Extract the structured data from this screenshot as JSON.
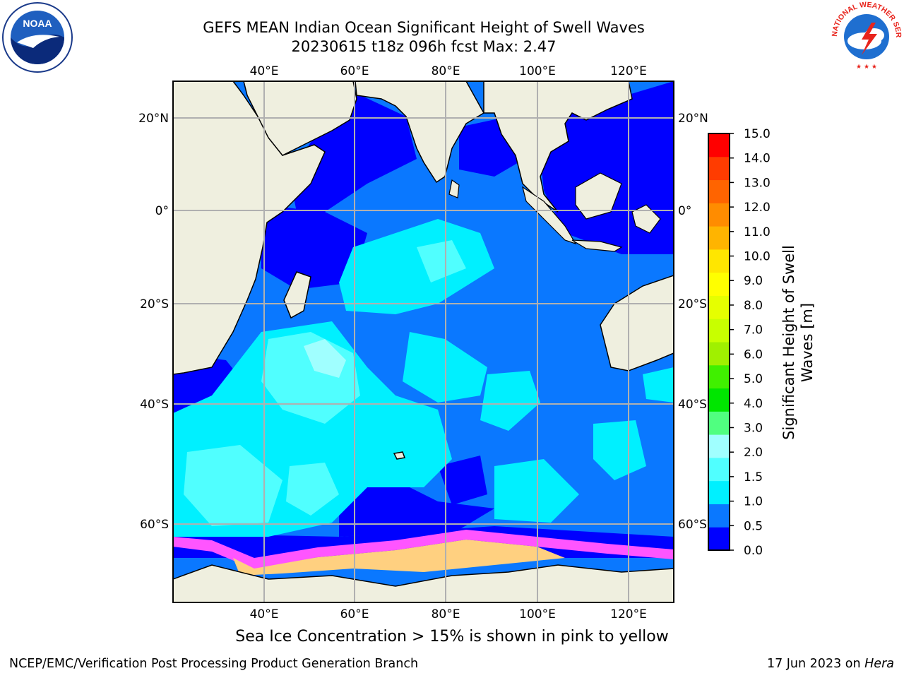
{
  "title": {
    "line1": "GEFS MEAN Indian Ocean Significant Height of Swell Waves",
    "line2": "20230615 t18z 096h fcst   Max: 2.47"
  },
  "map": {
    "lon_ticks": [
      "40°E",
      "60°E",
      "80°E",
      "100°E",
      "120°E"
    ],
    "lat_ticks": [
      "20°N",
      "0°",
      "20°S",
      "40°S",
      "60°S"
    ],
    "region": "Indian Ocean",
    "extent": {
      "lon": [
        20,
        129
      ],
      "lat": [
        -72,
        27
      ]
    }
  },
  "colorbar": {
    "label_line1": "Significant Height of Swell",
    "label_line2": "Waves [m]",
    "ticks": [
      "15.0",
      "14.0",
      "13.0",
      "12.0",
      "11.0",
      "10.0",
      "9.0",
      "8.0",
      "7.0",
      "6.0",
      "5.0",
      "4.0",
      "3.0",
      "2.0",
      "1.5",
      "1.0",
      "0.5",
      "0.0"
    ],
    "colors": [
      "#0000ff",
      "#0a78ff",
      "#00f0ff",
      "#50ffff",
      "#a0ffff",
      "#50ff80",
      "#00e600",
      "#40f000",
      "#a0f000",
      "#c8ff00",
      "#e6ff00",
      "#ffff00",
      "#ffe600",
      "#ffb400",
      "#ff8c00",
      "#ff6400",
      "#ff3c00",
      "#ff0000"
    ]
  },
  "caption": "Sea Ice Concentration > 15% is shown in pink to yellow",
  "footer": {
    "left": "NCEP/EMC/Verification Post Processing Product Generation Branch",
    "right_text": "17 Jun 2023 on ",
    "right_machine": "Hera"
  },
  "logos": {
    "noaa_text": "NOAA",
    "nws_text": "NATIONAL WEATHER SERVICE"
  }
}
